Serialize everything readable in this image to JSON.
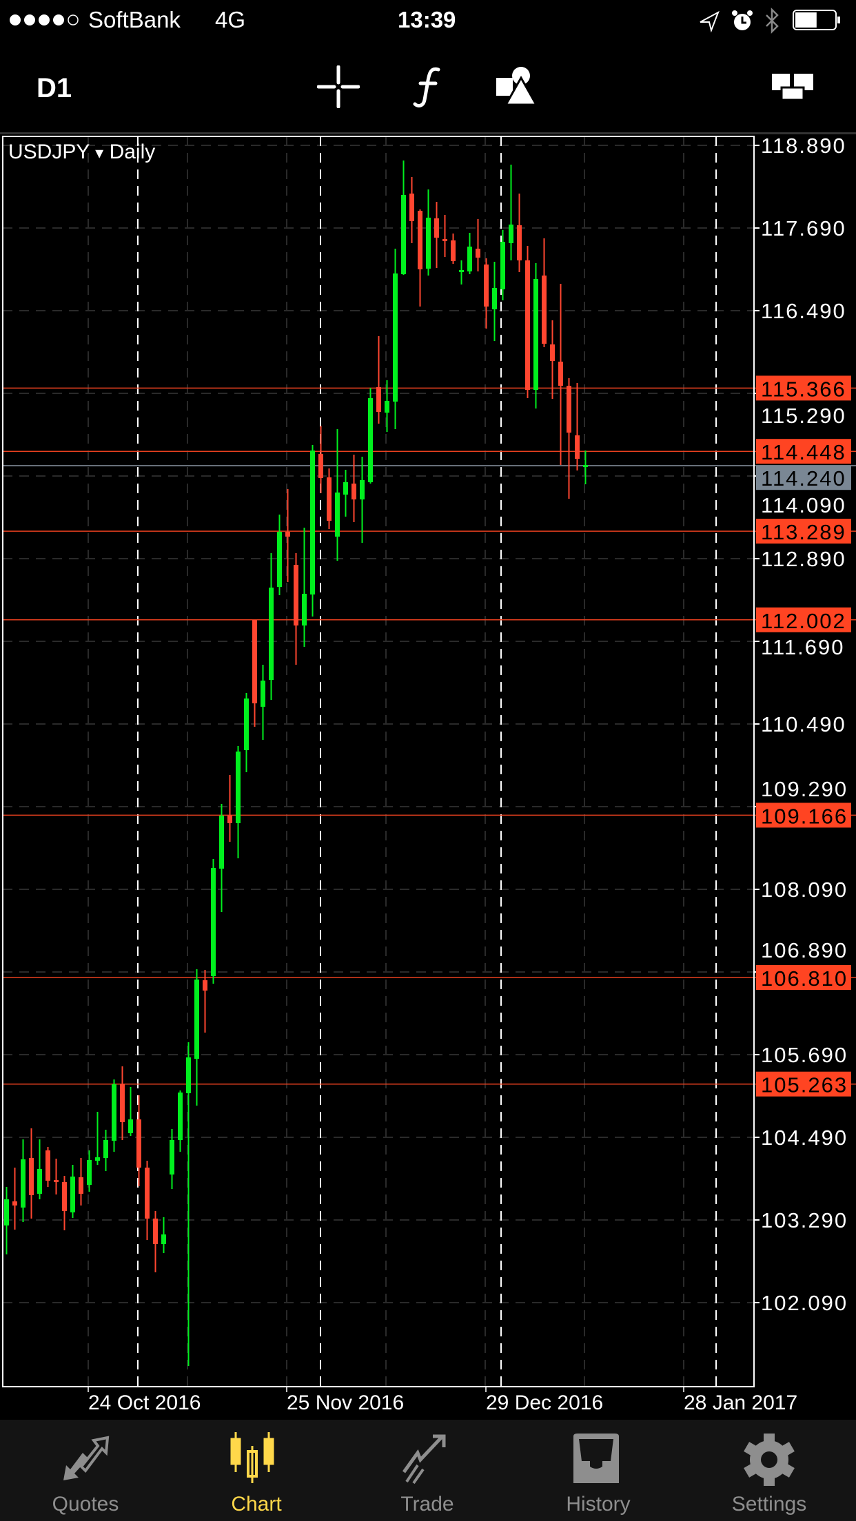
{
  "status_bar": {
    "signal_dots": 5,
    "signal_filled": 4,
    "carrier": "SoftBank",
    "network": "4G",
    "time": "13:39",
    "battery_level": 0.55
  },
  "toolbar": {
    "timeframe": "D1",
    "icons": [
      "crosshair-icon",
      "function-indicator-icon",
      "objects-icon",
      "window-layout-icon"
    ]
  },
  "chart": {
    "symbol": "USDJPY",
    "symbol_dropdown": "▾",
    "period": "Daily",
    "colors": {
      "bull": "#00f01e",
      "bear": "#ff4630",
      "level": "#e8401f",
      "level_label_bg": "#ff4422",
      "bid_label_bg": "#7a8794",
      "background": "#000000"
    }
  },
  "chart_data": {
    "type": "candlestick",
    "title": "USDJPY Daily",
    "y_ticks": [
      "118.890",
      "117.690",
      "116.490",
      "115.290",
      "114.090",
      "112.890",
      "111.690",
      "110.490",
      "109.290",
      "108.090",
      "106.890",
      "105.690",
      "104.490",
      "103.290",
      "102.090"
    ],
    "x_tick_labels": [
      "24 Oct 2016",
      "25 Nov 2016",
      "29 Dec 2016",
      "28 Jan 2017"
    ],
    "grid": true,
    "bid_price": "114.240",
    "levels": [
      "115.366",
      "114.448",
      "113.289",
      "112.002",
      "109.166",
      "106.810",
      "105.263"
    ],
    "candles_ohlc": [
      [
        103.21,
        103.77,
        102.79,
        103.59
      ],
      [
        103.56,
        104.05,
        103.15,
        103.5
      ],
      [
        103.47,
        104.46,
        103.26,
        104.17
      ],
      [
        104.19,
        104.62,
        103.31,
        103.65
      ],
      [
        103.67,
        104.46,
        103.59,
        104.03
      ],
      [
        104.3,
        104.35,
        103.77,
        103.86
      ],
      [
        103.87,
        104.18,
        103.66,
        103.85
      ],
      [
        103.84,
        103.93,
        103.14,
        103.42
      ],
      [
        103.4,
        104.09,
        103.32,
        103.92
      ],
      [
        103.91,
        104.19,
        103.5,
        103.67
      ],
      [
        103.8,
        104.3,
        103.7,
        104.16
      ],
      [
        104.15,
        104.86,
        104.09,
        104.2
      ],
      [
        104.19,
        104.6,
        104.0,
        104.45
      ],
      [
        104.44,
        105.33,
        104.28,
        105.26
      ],
      [
        105.26,
        105.52,
        104.45,
        104.71
      ],
      [
        104.55,
        105.22,
        104.51,
        104.75
      ],
      [
        104.75,
        105.1,
        103.78,
        104.05
      ],
      [
        104.05,
        104.15,
        103.0,
        103.31
      ],
      [
        103.31,
        103.42,
        102.53,
        102.94
      ],
      [
        102.94,
        103.33,
        102.81,
        103.08
      ],
      [
        103.95,
        104.61,
        103.74,
        104.45
      ],
      [
        104.45,
        105.17,
        104.28,
        105.14
      ],
      [
        105.13,
        105.87,
        101.17,
        105.65
      ],
      [
        105.63,
        106.93,
        104.95,
        106.78
      ],
      [
        106.77,
        106.92,
        106.01,
        106.62
      ],
      [
        106.83,
        108.53,
        106.72,
        108.4
      ],
      [
        108.39,
        109.33,
        107.76,
        109.16
      ],
      [
        109.16,
        109.75,
        108.78,
        109.05
      ],
      [
        109.05,
        110.17,
        108.54,
        110.09
      ],
      [
        110.11,
        110.94,
        109.79,
        110.86
      ],
      [
        112.0,
        112.0,
        110.45,
        110.79
      ],
      [
        110.74,
        111.35,
        110.26,
        111.12
      ],
      [
        111.13,
        112.97,
        110.84,
        112.47
      ],
      [
        112.48,
        113.53,
        112.36,
        113.28
      ],
      [
        113.28,
        113.9,
        112.55,
        113.21
      ],
      [
        112.8,
        112.97,
        111.35,
        111.92
      ],
      [
        111.92,
        113.34,
        111.61,
        112.38
      ],
      [
        112.37,
        114.54,
        112.05,
        114.46
      ],
      [
        114.41,
        114.82,
        113.84,
        114.06
      ],
      [
        114.07,
        114.2,
        113.32,
        113.44
      ],
      [
        113.21,
        114.77,
        112.86,
        113.85
      ],
      [
        113.82,
        114.18,
        113.5,
        114.0
      ],
      [
        113.98,
        114.4,
        113.42,
        113.75
      ],
      [
        113.75,
        114.37,
        113.12,
        114.03
      ],
      [
        114.0,
        115.37,
        113.98,
        115.22
      ],
      [
        115.38,
        116.12,
        114.85,
        115.02
      ],
      [
        115.01,
        115.48,
        114.73,
        115.18
      ],
      [
        115.17,
        117.39,
        114.77,
        117.03
      ],
      [
        117.02,
        118.67,
        117.01,
        118.17
      ],
      [
        118.19,
        118.43,
        117.47,
        117.79
      ],
      [
        117.94,
        117.96,
        116.55,
        117.09
      ],
      [
        117.1,
        118.25,
        117.0,
        117.84
      ],
      [
        117.83,
        118.07,
        117.11,
        117.55
      ],
      [
        117.53,
        117.88,
        117.27,
        117.51
      ],
      [
        117.51,
        117.61,
        117.17,
        117.21
      ],
      [
        117.06,
        117.22,
        116.87,
        117.08
      ],
      [
        117.06,
        117.62,
        117.02,
        117.42
      ],
      [
        117.39,
        117.82,
        117.06,
        117.26
      ],
      [
        117.16,
        117.25,
        116.23,
        116.55
      ],
      [
        116.51,
        117.2,
        116.05,
        116.82
      ],
      [
        116.8,
        117.66,
        116.64,
        117.49
      ],
      [
        117.47,
        118.61,
        117.22,
        117.74
      ],
      [
        117.73,
        118.19,
        117.05,
        117.22
      ],
      [
        117.22,
        117.43,
        115.22,
        115.34
      ],
      [
        115.34,
        117.18,
        115.07,
        116.95
      ],
      [
        117.0,
        117.54,
        115.96,
        116.01
      ],
      [
        116.0,
        116.35,
        115.21,
        115.76
      ],
      [
        115.75,
        116.88,
        114.25,
        115.4
      ],
      [
        115.4,
        115.51,
        113.76,
        114.72
      ],
      [
        114.68,
        115.44,
        114.17,
        114.34
      ],
      [
        114.23,
        114.46,
        113.97,
        114.25
      ]
    ]
  },
  "tabs": [
    {
      "label": "Quotes",
      "icon": "quotes-arrows-icon",
      "active": false
    },
    {
      "label": "Chart",
      "icon": "candlestick-chart-icon",
      "active": true
    },
    {
      "label": "Trade",
      "icon": "trade-trend-icon",
      "active": false
    },
    {
      "label": "History",
      "icon": "history-tray-icon",
      "active": false
    },
    {
      "label": "Settings",
      "icon": "settings-gear-icon",
      "active": false
    }
  ]
}
